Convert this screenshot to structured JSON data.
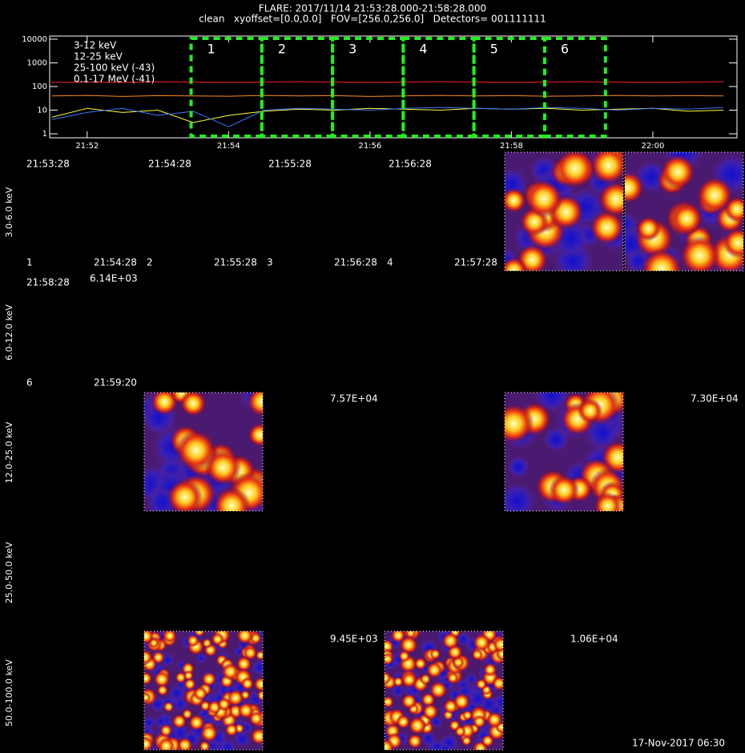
{
  "chart_data": {
    "type": "line",
    "title": "FLARE: 2017/11/14 21:53:28.000-21:58:28.000",
    "subtitle": "clean   xyoffset=[0.0,0.0]   FOV=[256.0,256.0]   Detectors= 001111111",
    "log_scale": true,
    "x": [
      51.5,
      52,
      52.5,
      53,
      53.5,
      54,
      54.5,
      55,
      55.5,
      56,
      56.5,
      57,
      57.5,
      58,
      58.5,
      59,
      59.5,
      60,
      60.5,
      61
    ],
    "series": [
      {
        "name": "3-12 keV",
        "color": "#ff2020",
        "values": [
          150,
          155,
          150,
          160,
          155,
          150,
          155,
          160,
          155,
          150,
          155,
          160,
          155,
          150,
          155,
          160,
          155,
          150,
          155,
          160
        ]
      },
      {
        "name": "12-25 keV",
        "color": "#ff8a1a",
        "values": [
          40,
          42,
          38,
          41,
          40,
          39,
          42,
          40,
          41,
          38,
          40,
          42,
          40,
          41,
          39,
          40,
          42,
          40,
          41,
          40
        ]
      },
      {
        "name": "25-100 keV (-43)",
        "color": "#ffff30",
        "values": [
          5,
          12,
          8,
          10,
          3,
          6,
          9,
          11,
          10,
          12,
          11,
          10,
          12,
          11,
          12,
          10,
          11,
          12,
          9,
          10
        ]
      },
      {
        "name": "0.1-17 MeV (-41)",
        "color": "#3a78ff",
        "values": [
          4,
          8,
          12,
          6,
          9,
          2,
          10,
          12,
          11,
          10,
          12,
          13,
          12,
          11,
          13,
          12,
          10,
          12,
          11,
          13
        ]
      }
    ],
    "xlim": [
      51.47,
      61.19
    ],
    "xticks": [
      {
        "value": 52,
        "label": "21:52"
      },
      {
        "value": 54,
        "label": "21:54"
      },
      {
        "value": 56,
        "label": "21:56"
      },
      {
        "value": 58,
        "label": "21:58"
      },
      {
        "value": 60,
        "label": "22:00"
      }
    ],
    "ylim": [
      0.68,
      13600
    ],
    "yticks": [
      1,
      10,
      100,
      1000,
      10000
    ],
    "intervals": [
      {
        "label": "1",
        "start": 53.47,
        "end": 54.47
      },
      {
        "label": "2",
        "start": 54.47,
        "end": 55.47
      },
      {
        "label": "3",
        "start": 55.47,
        "end": 56.47
      },
      {
        "label": "4",
        "start": 56.47,
        "end": 57.47
      },
      {
        "label": "5",
        "start": 57.47,
        "end": 58.47
      },
      {
        "label": "6",
        "start": 58.47,
        "end": 59.33
      }
    ],
    "interval_color": "#22ee22"
  },
  "image_grid": {
    "energy_bands": [
      "3.0-6.0 keV",
      "6.0-12.0 keV",
      "12.0-25.0 keV",
      "25.0-50.0 keV",
      "50.0-100.0 keV"
    ],
    "texts": [
      {
        "text": "21:53:28",
        "color": "#ffffff"
      },
      {
        "text": "21:54:28",
        "color": "#ffffff"
      },
      {
        "text": "21:55:28",
        "color": "#ffffff"
      },
      {
        "text": "21:56:28",
        "color": "#ffffff"
      },
      {
        "text": "1",
        "color": "#22ee22"
      },
      {
        "text": "21:54:28",
        "color": "#ffffff"
      },
      {
        "text": "2",
        "color": "#22ee22"
      },
      {
        "text": "21:55:28",
        "color": "#ffffff"
      },
      {
        "text": "3",
        "color": "#22ee22"
      },
      {
        "text": "21:56:28",
        "color": "#ffffff"
      },
      {
        "text": "4",
        "color": "#22ee22"
      },
      {
        "text": "21:57:28",
        "color": "#ffffff"
      },
      {
        "text": "21:58:28",
        "color": "#ffffff"
      },
      {
        "text": "6.14E+03",
        "color": "#22ee22"
      },
      {
        "text": "6",
        "color": "#22ee22"
      },
      {
        "text": "21:59:20",
        "color": "#ffffff"
      },
      {
        "text": "7.57E+04",
        "color": "#22ee22"
      },
      {
        "text": "7.30E+04",
        "color": "#22ee22"
      },
      {
        "text": "9.45E+03",
        "color": "#22ee22"
      },
      {
        "text": "1.06E+04",
        "color": "#22ee22"
      }
    ]
  },
  "footer": "17-Nov-2017 06:30"
}
